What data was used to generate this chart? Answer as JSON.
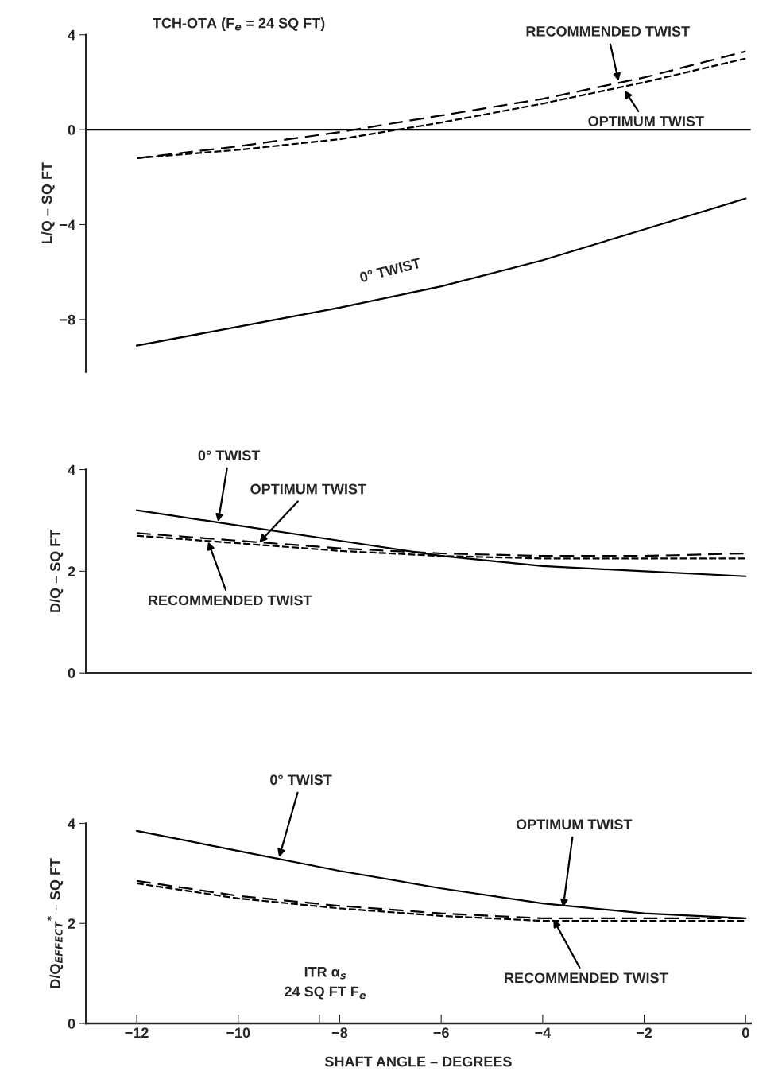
{
  "chart_data": [
    {
      "type": "line",
      "title": "TCH-OTA (F$_{e}$ = 24 SQ FT)",
      "ylabel": "L/Q – SQ FT",
      "x": [
        -12,
        -10,
        -8,
        -6,
        -4,
        -2,
        0
      ],
      "xlim": [
        -13,
        0.1
      ],
      "ylim": [
        -10.2,
        4
      ],
      "yticks": [
        {
          "value": -8,
          "label": "−8"
        },
        {
          "value": -4,
          "label": "−4"
        },
        0,
        4
      ],
      "tick_labels": "y",
      "grid": false,
      "legend": false,
      "series": [
        {
          "color": "#000000",
          "line_style": "solid",
          "values": [
            -9.1,
            -8.3,
            -7.5,
            -6.6,
            -5.5,
            -4.2,
            -2.9
          ]
        },
        {
          "color": "#000000",
          "line_style": "dashed",
          "values": [
            -1.2,
            -0.7,
            -0.1,
            0.6,
            1.3,
            2.2,
            3.3
          ]
        },
        {
          "color": "#000000",
          "line_style": "dashed",
          "values": [
            -1.2,
            -0.85,
            -0.4,
            0.3,
            1.1,
            2.0,
            3.0
          ]
        }
      ],
      "ref_lines": [
        {
          "axis": "y",
          "value": 0,
          "color": "#000000",
          "line_style": "solid"
        }
      ],
      "annotations": [
        {
          "text": "RECOMMENDED TWIST",
          "x": -2.5,
          "y": 2.0
        },
        {
          "text": "OPTIMUM TWIST",
          "x": -2.4,
          "y": 1.7
        },
        {
          "text": "0° TWIST",
          "x": -7,
          "y": -6.9
        }
      ]
    },
    {
      "type": "line",
      "ylabel": "D/Q – SQ FT",
      "x": [
        -12,
        -10,
        -8,
        -6,
        -4,
        -2,
        0
      ],
      "xlim": [
        -13,
        0.1
      ],
      "ylim": [
        0,
        4
      ],
      "yticks": [
        0,
        2,
        4
      ],
      "tick_labels": "y",
      "grid": false,
      "legend": false,
      "series": [
        {
          "color": "#000000",
          "line_style": "solid",
          "values": [
            3.2,
            2.9,
            2.6,
            2.3,
            2.1,
            2.0,
            1.9
          ]
        },
        {
          "color": "#000000",
          "line_style": "dashed",
          "values": [
            2.75,
            2.6,
            2.45,
            2.35,
            2.3,
            2.3,
            2.35
          ]
        },
        {
          "color": "#000000",
          "line_style": "dashed",
          "values": [
            2.7,
            2.55,
            2.4,
            2.3,
            2.25,
            2.25,
            2.25
          ]
        }
      ],
      "annotations": [
        {
          "text": "0° TWIST",
          "x": -10.4,
          "y": 2.95
        },
        {
          "text": "OPTIMUM TWIST",
          "x": -9.6,
          "y": 2.55
        },
        {
          "text": "RECOMMENDED TWIST",
          "x": -10.6,
          "y": 2.6
        }
      ]
    },
    {
      "type": "line",
      "ylabel": "D/Q$_{EFFECT}$$^{*}$ – SQ FT",
      "xlabel": "SHAFT ANGLE – DEGREES",
      "x": [
        -12,
        -10,
        -8,
        -6,
        -4,
        -2,
        0
      ],
      "xlim": [
        -13,
        0.1
      ],
      "ylim": [
        0,
        4
      ],
      "yticks": [
        0,
        2,
        4
      ],
      "xticks": [
        {
          "value": -12,
          "label": "−12"
        },
        {
          "value": -10,
          "label": "−10"
        },
        {
          "value": -8,
          "label": "−8"
        },
        {
          "value": -6,
          "label": "−6"
        },
        {
          "value": -4,
          "label": "−4"
        },
        {
          "value": -2,
          "label": "−2"
        },
        0,
        {
          "value": -8.4,
          "label": null
        }
      ],
      "grid": false,
      "legend": false,
      "series": [
        {
          "color": "#000000",
          "line_style": "solid",
          "values": [
            3.85,
            3.45,
            3.05,
            2.7,
            2.4,
            2.2,
            2.1
          ]
        },
        {
          "color": "#000000",
          "line_style": "dashed",
          "values": [
            2.85,
            2.55,
            2.35,
            2.2,
            2.1,
            2.1,
            2.1
          ]
        },
        {
          "color": "#000000",
          "line_style": "dashed",
          "values": [
            2.8,
            2.5,
            2.3,
            2.15,
            2.05,
            2.05,
            2.05
          ]
        }
      ],
      "annotations": [
        {
          "text": "0° TWIST",
          "x": -9.2,
          "y": 3.3
        },
        {
          "text": "OPTIMUM TWIST",
          "x": -3.6,
          "y": 2.3
        },
        {
          "text": "RECOMMENDED TWIST",
          "x": -3.8,
          "y": 2.1
        },
        "ITR α$_{s}$\n24 SQ FT F$_{e}$"
      ]
    }
  ]
}
